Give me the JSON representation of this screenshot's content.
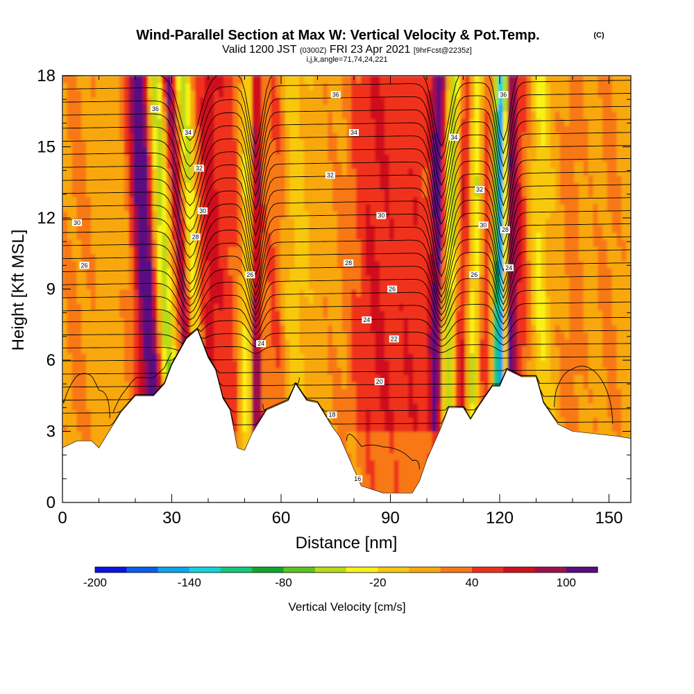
{
  "title": {
    "main": "Wind-Parallel Section at Max W: Vertical Velocity & Pot.Temp.",
    "copyright": "(C)",
    "valid_prefix": "Valid 1200 JST",
    "valid_utc": "(0300Z)",
    "valid_date": "FRI 23 Apr 2021",
    "forecast": "[9hrFcst@2235z]",
    "indices": "i,j,k,angle=71,74,24,221"
  },
  "chart_data": {
    "type": "heatmap",
    "title": "Wind-Parallel Section at Max W: Vertical Velocity & Pot.Temp.",
    "xlabel": "Distance [nm]",
    "ylabel": "Height [Kft MSL]",
    "xlim": [
      0,
      156
    ],
    "ylim": [
      0,
      18
    ],
    "x_ticks": [
      0,
      30,
      60,
      90,
      120,
      150
    ],
    "y_ticks": [
      0,
      3,
      6,
      9,
      12,
      15,
      18
    ],
    "colorbar": {
      "label": "Vertical Velocity [cm/s]",
      "ticks": [
        -200,
        -140,
        -80,
        -20,
        40,
        100
      ],
      "range": [
        -200,
        120
      ],
      "step": 20,
      "colors": [
        "#0a14e6",
        "#0a5ef0",
        "#0aa6f0",
        "#10d4dc",
        "#12c87a",
        "#10a82c",
        "#5cc41c",
        "#b8dc14",
        "#f8f214",
        "#f8c810",
        "#f8a80c",
        "#f87818",
        "#f0301a",
        "#d0101e",
        "#a0104c",
        "#5a0c82"
      ]
    },
    "terrain_kft": [
      [
        0,
        2.3
      ],
      [
        4,
        2.6
      ],
      [
        8,
        2.6
      ],
      [
        10,
        2.3
      ],
      [
        12,
        2.8
      ],
      [
        16,
        3.8
      ],
      [
        20,
        4.5
      ],
      [
        25,
        4.5
      ],
      [
        28,
        5.0
      ],
      [
        30,
        5.8
      ],
      [
        34,
        6.9
      ],
      [
        37,
        7.3
      ],
      [
        40,
        6.1
      ],
      [
        42,
        5.6
      ],
      [
        44,
        4.4
      ],
      [
        46,
        3.9
      ],
      [
        48,
        2.3
      ],
      [
        50,
        2.2
      ],
      [
        52,
        2.9
      ],
      [
        56,
        3.9
      ],
      [
        62,
        4.3
      ],
      [
        64,
        5.0
      ],
      [
        67,
        4.3
      ],
      [
        70,
        4.2
      ],
      [
        74,
        3.2
      ],
      [
        76,
        2.8
      ],
      [
        80,
        1.4
      ],
      [
        82,
        0.7
      ],
      [
        88,
        0.4
      ],
      [
        96,
        0.4
      ],
      [
        98,
        0.9
      ],
      [
        100,
        1.8
      ],
      [
        102,
        2.5
      ],
      [
        104,
        3.2
      ],
      [
        106,
        4.0
      ],
      [
        110,
        4.0
      ],
      [
        112,
        3.5
      ],
      [
        114,
        4.0
      ],
      [
        118,
        4.9
      ],
      [
        120,
        4.9
      ],
      [
        122,
        5.6
      ],
      [
        126,
        5.3
      ],
      [
        130,
        5.3
      ],
      [
        132,
        4.2
      ],
      [
        136,
        3.3
      ],
      [
        140,
        3.0
      ],
      [
        152,
        2.8
      ],
      [
        156,
        2.7
      ]
    ],
    "isentrope_labels": [
      {
        "text": "36",
        "x": 25.5,
        "y": 16.6
      },
      {
        "text": "34",
        "x": 34.5,
        "y": 15.6
      },
      {
        "text": "32",
        "x": 37.5,
        "y": 14.1
      },
      {
        "text": "30",
        "x": 38.5,
        "y": 12.3
      },
      {
        "text": "28",
        "x": 36.5,
        "y": 11.2
      },
      {
        "text": "30",
        "x": 4,
        "y": 11.8
      },
      {
        "text": "26",
        "x": 6,
        "y": 10.0
      },
      {
        "text": "26",
        "x": 51.5,
        "y": 9.6
      },
      {
        "text": "24",
        "x": 54.5,
        "y": 6.7
      },
      {
        "text": "36",
        "x": 75,
        "y": 17.2
      },
      {
        "text": "34",
        "x": 80,
        "y": 15.6
      },
      {
        "text": "32",
        "x": 73.5,
        "y": 13.8
      },
      {
        "text": "30",
        "x": 87.5,
        "y": 12.1
      },
      {
        "text": "28",
        "x": 78.5,
        "y": 10.1
      },
      {
        "text": "26",
        "x": 90.5,
        "y": 9.0
      },
      {
        "text": "24",
        "x": 83.5,
        "y": 7.7
      },
      {
        "text": "22",
        "x": 91,
        "y": 6.9
      },
      {
        "text": "20",
        "x": 87,
        "y": 5.1
      },
      {
        "text": "18",
        "x": 74,
        "y": 3.7
      },
      {
        "text": "16",
        "x": 81,
        "y": 1.0
      },
      {
        "text": "36",
        "x": 121,
        "y": 17.2
      },
      {
        "text": "34",
        "x": 107.5,
        "y": 15.4
      },
      {
        "text": "32",
        "x": 114.5,
        "y": 13.2
      },
      {
        "text": "30",
        "x": 115.5,
        "y": 11.7
      },
      {
        "text": "28",
        "x": 121.5,
        "y": 11.5
      },
      {
        "text": "26",
        "x": 113,
        "y": 9.6
      },
      {
        "text": "24",
        "x": 122.5,
        "y": 9.9
      }
    ]
  }
}
